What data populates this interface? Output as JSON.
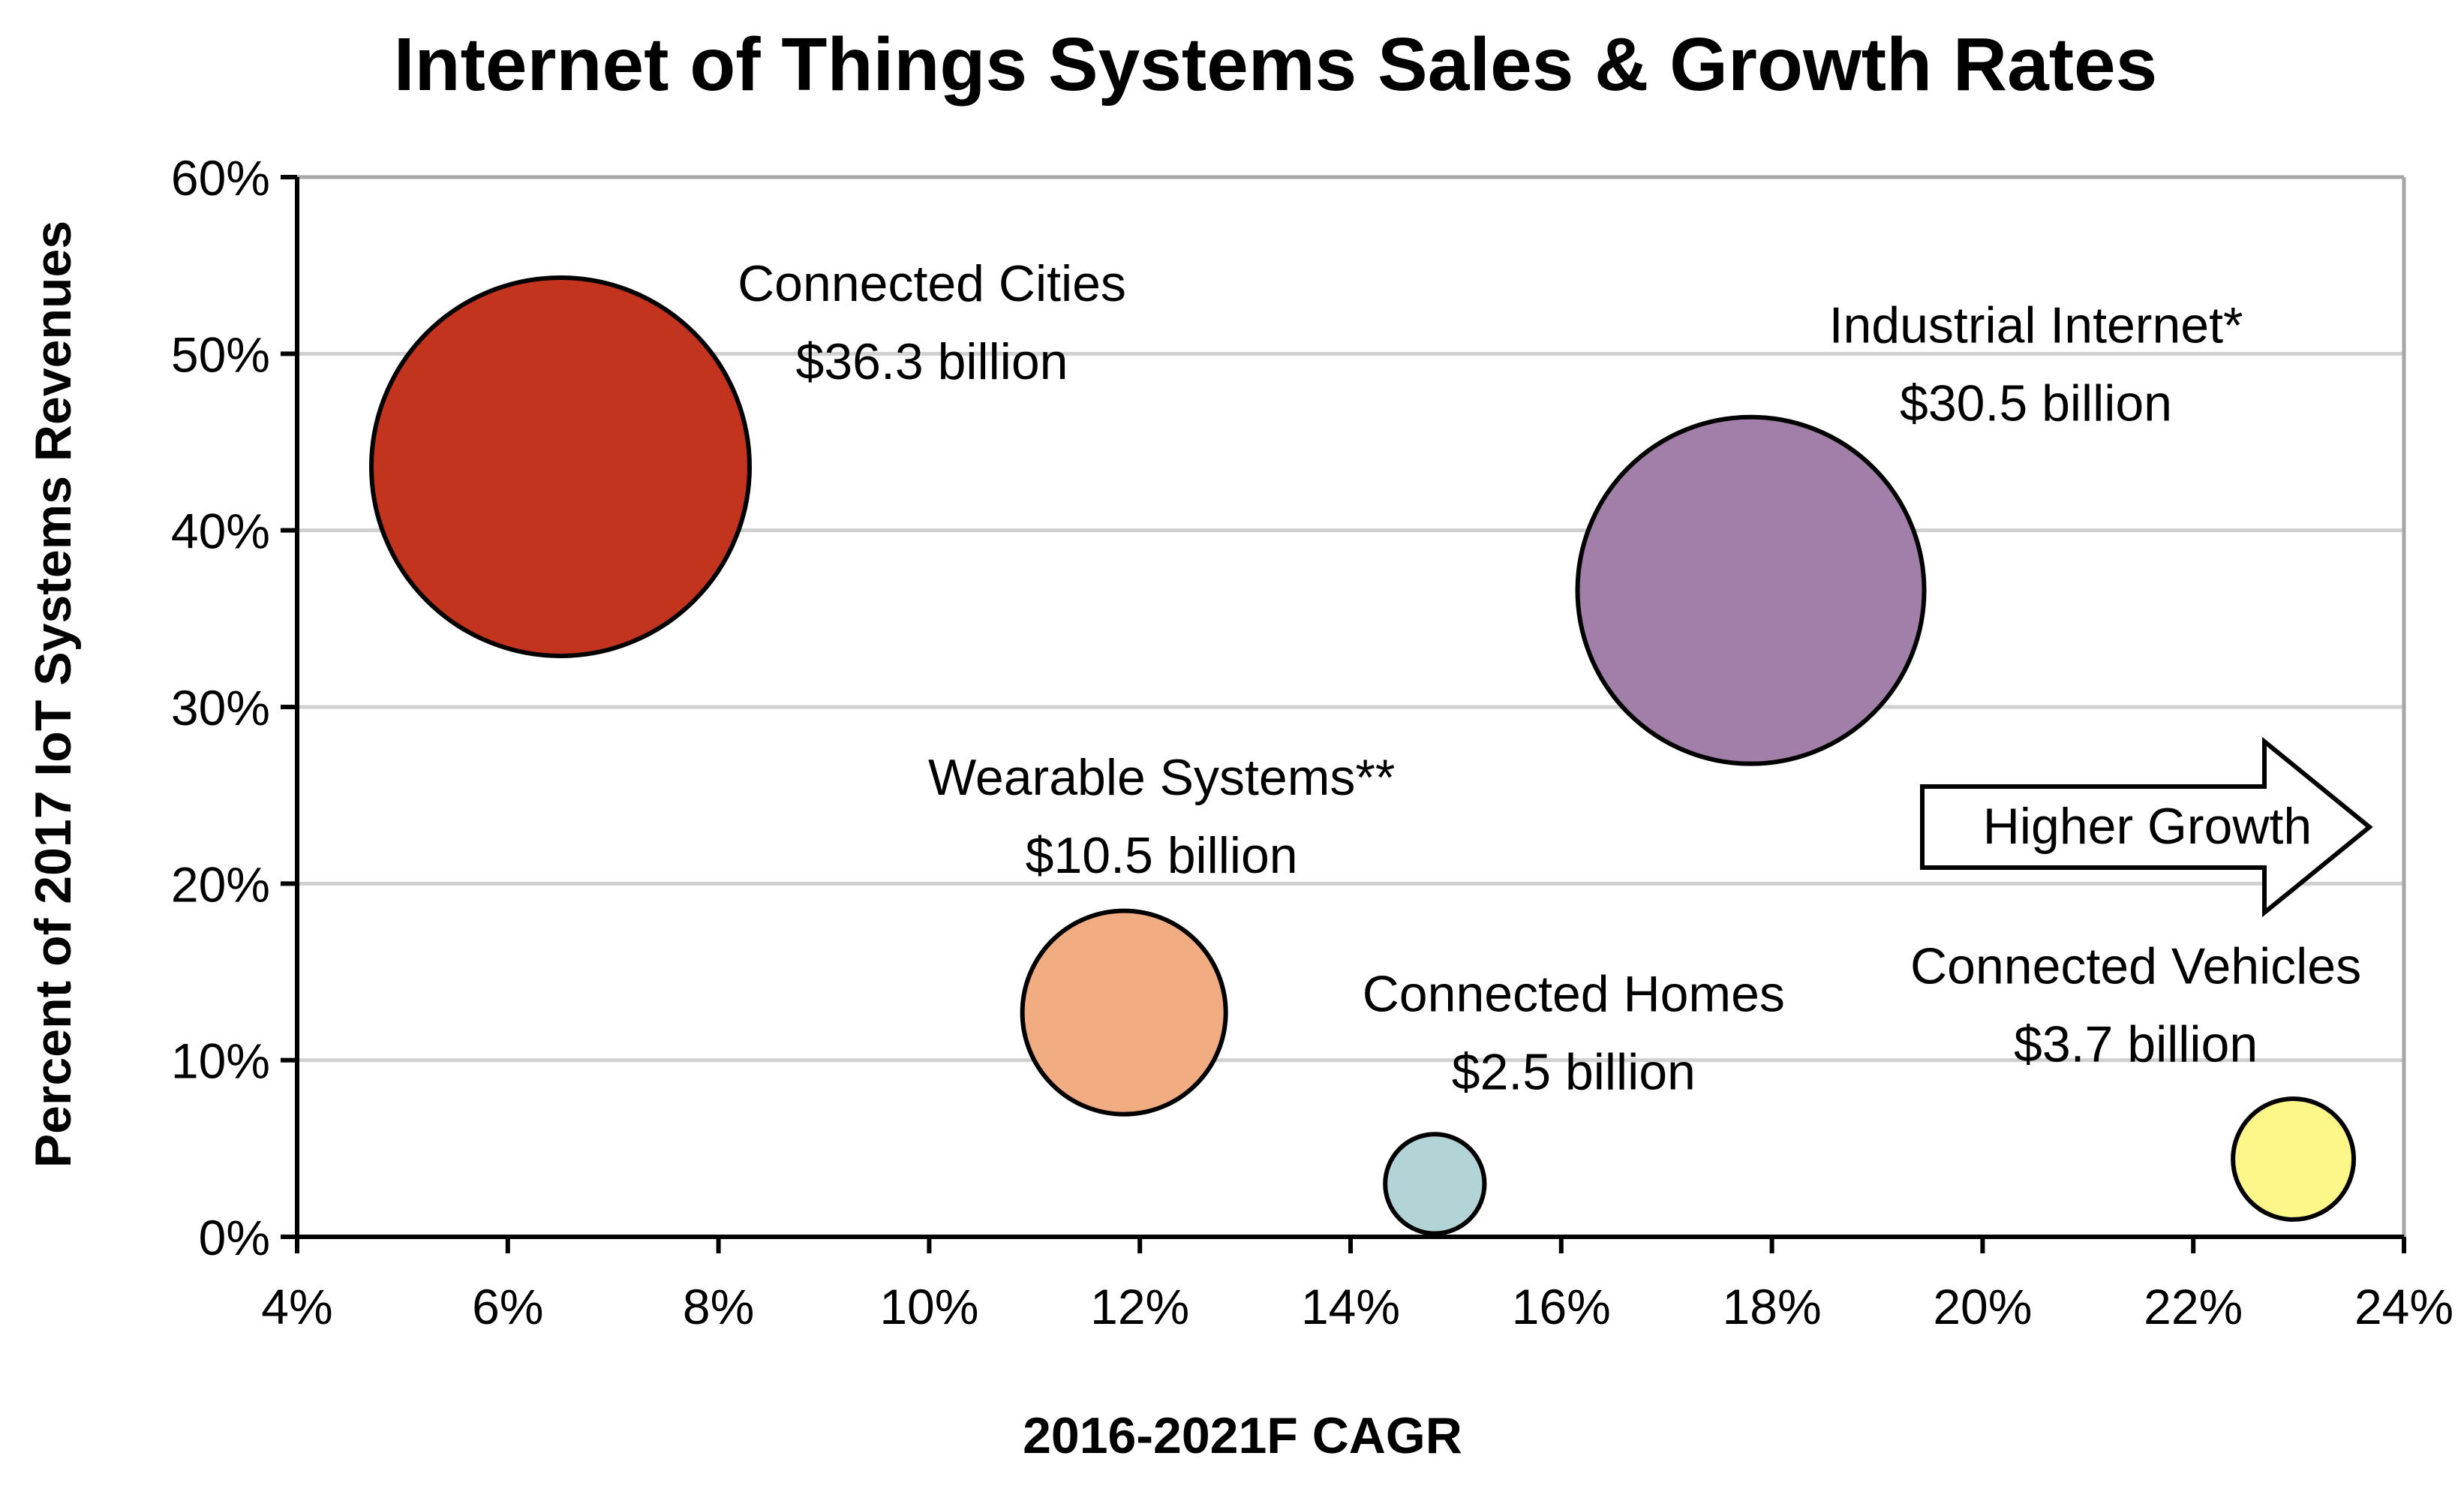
{
  "chart_data": {
    "type": "bubble",
    "title": "Internet of Things Systems Sales & Growth Rates",
    "xlabel": "2016-2021F CAGR",
    "ylabel": "Percent of 2017 IoT Systems Revenues",
    "xlim": [
      4,
      24
    ],
    "ylim": [
      0,
      60
    ],
    "x_ticks": [
      4,
      6,
      8,
      10,
      12,
      14,
      16,
      18,
      20,
      22,
      24
    ],
    "y_ticks": [
      0,
      10,
      20,
      30,
      40,
      50,
      60
    ],
    "x_tick_labels": [
      "4%",
      "6%",
      "8%",
      "10%",
      "12%",
      "14%",
      "16%",
      "18%",
      "20%",
      "22%",
      "24%"
    ],
    "y_tick_labels": [
      "0%",
      "10%",
      "20%",
      "30%",
      "40%",
      "50%",
      "60%"
    ],
    "grid": "horizontal",
    "colors": {
      "grid": "#d0d0d0",
      "axis": "#000000",
      "frame": "#a6a6a6",
      "bubble_stroke": "#000000"
    },
    "series": [
      {
        "name": "Connected Cities",
        "value_label": "$36.3 billion",
        "x": 6.5,
        "y": 43.6,
        "revenue_billion": 36.3,
        "color": "#c3341f"
      },
      {
        "name": "Industrial Internet*",
        "value_label": "$30.5 billion",
        "x": 17.8,
        "y": 36.6,
        "revenue_billion": 30.5,
        "color": "#a17fa8"
      },
      {
        "name": "Wearable Systems**",
        "value_label": "$10.5 billion",
        "x": 11.85,
        "y": 12.7,
        "revenue_billion": 10.5,
        "color": "#f2ac82"
      },
      {
        "name": "Connected Homes",
        "value_label": "$2.5 billion",
        "x": 14.8,
        "y": 3.0,
        "revenue_billion": 2.5,
        "color": "#b2d4d6"
      },
      {
        "name": "Connected Vehicles",
        "value_label": "$3.7 billion",
        "x": 22.95,
        "y": 4.4,
        "revenue_billion": 3.7,
        "color": "#fdf78a"
      }
    ],
    "annotation": {
      "text": "Higher Growth",
      "shape": "right-arrow"
    }
  }
}
